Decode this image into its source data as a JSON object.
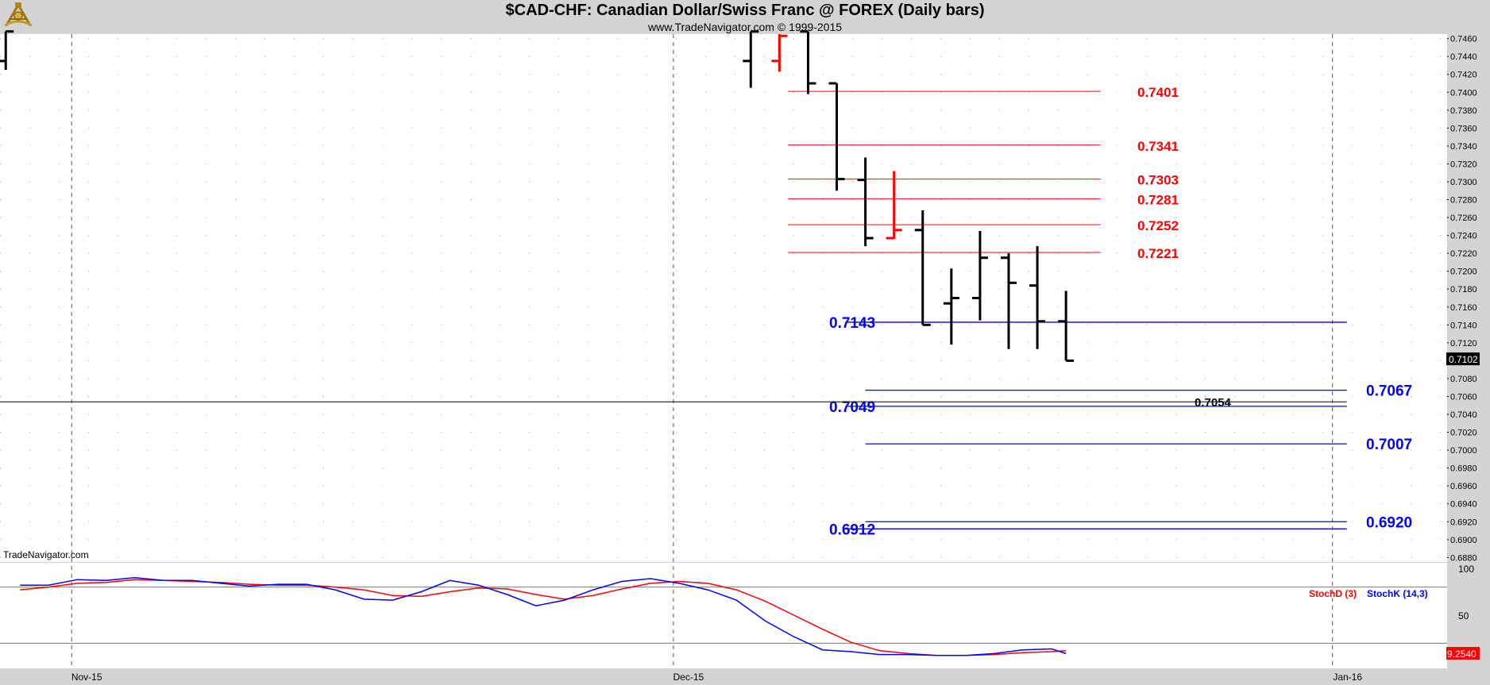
{
  "header": {
    "title": "$CAD-CHF:  Canadian Dollar/Swiss Franc @ FOREX  (Daily bars)",
    "subtitle": "www.TradeNavigator.com © 1999-2015"
  },
  "watermark": "TradeNavigator.com",
  "colors": {
    "bull": "#000000",
    "bear": "#ff0000",
    "fib": "#ff0000",
    "support": "#0000ff",
    "stochK": "#0000ff",
    "stochD": "#ff0000",
    "panel": "#ffffff",
    "frame": "#d4d4d4"
  },
  "chart_data": {
    "type": "ohlc",
    "price_axis": {
      "range": [
        0.6875,
        0.7465
      ],
      "ticks": [
        "0.7460",
        "0.7440",
        "0.7420",
        "0.7400",
        "0.7380",
        "0.7360",
        "0.7340",
        "0.7320",
        "0.7300",
        "0.7280",
        "0.7260",
        "0.7240",
        "0.7220",
        "0.7200",
        "0.7180",
        "0.7160",
        "0.7140",
        "0.7120",
        "0.7100",
        "0.7080",
        "0.7060",
        "0.7040",
        "0.7020",
        "0.7000",
        "0.6980",
        "0.6960",
        "0.6940",
        "0.6920",
        "0.6900",
        "0.6880"
      ],
      "last_price": "0.7102"
    },
    "time_axis": {
      "range": [
        0,
        50.5
      ],
      "labels": [
        {
          "text": "Nov-15",
          "x": 2.5
        },
        {
          "text": "Dec-15",
          "x": 23.5
        },
        {
          "text": "Jan-16",
          "x": 46.5
        }
      ]
    },
    "bars": [
      {
        "x": 0.2,
        "o": 0.7435,
        "h": 0.7468,
        "l": 0.7425,
        "c": 0.7468,
        "color": "bull"
      },
      {
        "x": 26.2,
        "o": 0.7435,
        "h": 0.7468,
        "l": 0.7405,
        "c": 0.7468,
        "color": "bull"
      },
      {
        "x": 27.2,
        "o": 0.7435,
        "h": 0.7465,
        "l": 0.7423,
        "c": 0.7463,
        "color": "bear"
      },
      {
        "x": 28.2,
        "o": 0.7468,
        "h": 0.7468,
        "l": 0.7398,
        "c": 0.741,
        "color": "bull"
      },
      {
        "x": 29.2,
        "o": 0.741,
        "h": 0.741,
        "l": 0.729,
        "c": 0.7303,
        "color": "bull"
      },
      {
        "x": 30.2,
        "o": 0.7302,
        "h": 0.7327,
        "l": 0.7228,
        "c": 0.7237,
        "color": "bull"
      },
      {
        "x": 31.2,
        "o": 0.7237,
        "h": 0.7312,
        "l": 0.7236,
        "c": 0.7246,
        "color": "bear"
      },
      {
        "x": 32.2,
        "o": 0.7246,
        "h": 0.7268,
        "l": 0.714,
        "c": 0.714,
        "color": "bull"
      },
      {
        "x": 33.2,
        "o": 0.7164,
        "h": 0.7203,
        "l": 0.7118,
        "c": 0.717,
        "color": "bull"
      },
      {
        "x": 34.2,
        "o": 0.717,
        "h": 0.7245,
        "l": 0.7145,
        "c": 0.7215,
        "color": "bull"
      },
      {
        "x": 35.2,
        "o": 0.7215,
        "h": 0.722,
        "l": 0.7113,
        "c": 0.7187,
        "color": "bull"
      },
      {
        "x": 36.2,
        "o": 0.7184,
        "h": 0.7228,
        "l": 0.7113,
        "c": 0.7144,
        "color": "bull"
      },
      {
        "x": 37.2,
        "o": 0.7144,
        "h": 0.7178,
        "l": 0.71,
        "c": 0.71,
        "color": "bull"
      }
    ],
    "fib_levels": [
      {
        "value": 0.7401,
        "label": "0.7401"
      },
      {
        "value": 0.7341,
        "label": "0.7341"
      },
      {
        "value": 0.7303,
        "label": "0.7303"
      },
      {
        "value": 0.7281,
        "label": "0.7281"
      },
      {
        "value": 0.7252,
        "label": "0.7252"
      },
      {
        "value": 0.7221,
        "label": "0.7221"
      }
    ],
    "support_lines": [
      {
        "value": 0.7143,
        "x1": 29.5,
        "label": "0.7143",
        "label_side": "left"
      },
      {
        "value": 0.7067,
        "x1": 30.2,
        "label": "0.7067",
        "label_side": "right"
      },
      {
        "value": 0.7049,
        "x1": 29.5,
        "label": "0.7049",
        "label_side": "left"
      },
      {
        "value": 0.7007,
        "x1": 30.2,
        "label": "0.7007",
        "label_side": "right"
      },
      {
        "value": 0.692,
        "x1": 30.2,
        "label": "0.6920",
        "label_side": "right"
      },
      {
        "value": 0.6912,
        "x1": 29.5,
        "label": "0.6912",
        "label_side": "left"
      }
    ],
    "support_end_x": 47.0,
    "black_line": {
      "value": 0.7054,
      "label": "0.7054"
    },
    "stochastic": {
      "range": [
        0,
        100
      ],
      "ticks": [
        "100",
        "50"
      ],
      "levels": [
        80,
        20
      ],
      "legend_d": "StochD (3)",
      "legend_k": "StochK (14,3)",
      "last_value": "9.2540",
      "k_x": [
        0.7,
        1.7,
        2.7,
        3.7,
        4.7,
        5.7,
        6.7,
        7.7,
        8.7,
        9.7,
        10.7,
        11.7,
        12.7,
        13.7,
        14.7,
        15.7,
        16.7,
        17.7,
        18.7,
        19.7,
        20.7,
        21.7,
        22.7,
        23.7,
        24.7,
        25.7,
        26.7,
        27.7,
        28.7,
        29.7,
        30.7,
        31.7,
        32.7,
        33.7,
        34.7,
        35.7,
        36.7,
        37.2
      ],
      "k": [
        82,
        82,
        88,
        87,
        90,
        87,
        87,
        84,
        81,
        83,
        83,
        77,
        67,
        66,
        75,
        87,
        82,
        72,
        60,
        66,
        77,
        86,
        89,
        84,
        77,
        66,
        44,
        27,
        13,
        11,
        8,
        8,
        7,
        7,
        9,
        13,
        14,
        9
      ],
      "d_x": [
        0.7,
        1.7,
        2.7,
        3.7,
        4.7,
        5.7,
        6.7,
        7.7,
        8.7,
        9.7,
        10.7,
        11.7,
        12.7,
        13.7,
        14.7,
        15.7,
        16.7,
        17.7,
        18.7,
        19.7,
        20.7,
        21.7,
        22.7,
        23.7,
        24.7,
        25.7,
        26.7,
        27.7,
        28.7,
        29.7,
        30.7,
        31.7,
        32.7,
        33.7,
        34.7,
        35.7,
        36.7,
        37.2
      ],
      "d": [
        77,
        80,
        84,
        85,
        88,
        87,
        86,
        85,
        83,
        82,
        82,
        80,
        77,
        71,
        70,
        75,
        79,
        78,
        72,
        67,
        71,
        78,
        84,
        86,
        84,
        77,
        65,
        50,
        35,
        21,
        12,
        9,
        7,
        7,
        8,
        10,
        11,
        12
      ]
    }
  }
}
